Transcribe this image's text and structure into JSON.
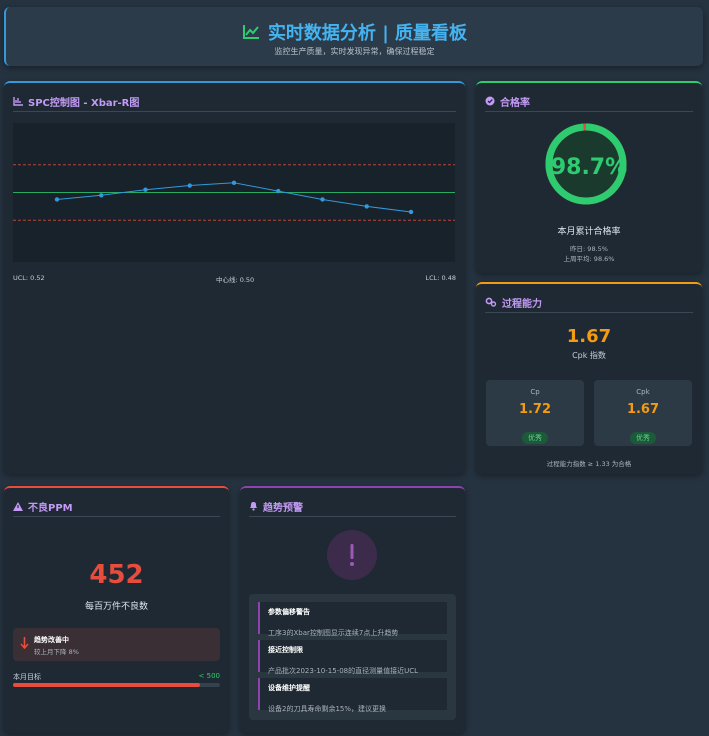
{
  "header": {
    "title": "实时数据分析 | 质量看板",
    "subtitle": "监控生产质量，实时发现异常，确保过程稳定"
  },
  "chart_data": {
    "type": "line",
    "title": "SPC控制图 - Xbar-R图",
    "categories": [
      null,
      null,
      null,
      null,
      null,
      null,
      null,
      null,
      null
    ],
    "series": [
      {
        "name": null,
        "color": "#3498db",
        "values": [
          0.495,
          0.498,
          0.502,
          0.505,
          0.507,
          0.501,
          0.495,
          0.49,
          0.486
        ]
      }
    ],
    "ylim": [
      0.45,
      0.55
    ],
    "control_limits": [
      {
        "value": 0.52,
        "label": "UCL: 0.52",
        "color": "#e74c3c"
      },
      {
        "value": 0.5,
        "label": "中心线: 0.50",
        "color": "#2ecc71"
      },
      {
        "value": 0.48,
        "label": "LCL: 0.48",
        "color": "#e74c3c"
      }
    ]
  },
  "pass_rate": {
    "title": "合格率",
    "value": 98.7,
    "value_label": "98.7%",
    "color": "#2ecc71",
    "rest_color": "#e74c3c",
    "caption": "本月累计合格率",
    "details": [
      "昨日: 98.5%",
      "上周平均: 98.6%"
    ]
  },
  "process_capability": {
    "title": "过程能力",
    "value": 1.67,
    "caption": "Cpk 指数",
    "cards": [
      {
        "name": "Cp",
        "value": 1.72,
        "badge": "优秀"
      },
      {
        "name": "Cpk",
        "value": 1.67,
        "badge": "优秀"
      }
    ],
    "note": "过程能力指数 ≥ 1.33 为合格"
  },
  "ppm": {
    "title": "不良PPM",
    "value": 452,
    "caption": "每百万件不良数",
    "trend": {
      "title": "趋势改善中",
      "text": "较上月下降 8%"
    },
    "target_label": "本月目标",
    "target": {
      "value": 500,
      "label": "< 500"
    }
  },
  "alerts": {
    "title": "趋势预警",
    "items": [
      {
        "title": "参数偏移警告",
        "text": "工序3的Xbar控制图显示连续7点上升趋势"
      },
      {
        "title": "接近控制限",
        "text": "产品批次2023-10-15-08的直径测量值接近UCL"
      },
      {
        "title": "设备维护提醒",
        "text": "设备2的刀具寿命剩余15%，建议更换"
      }
    ]
  }
}
